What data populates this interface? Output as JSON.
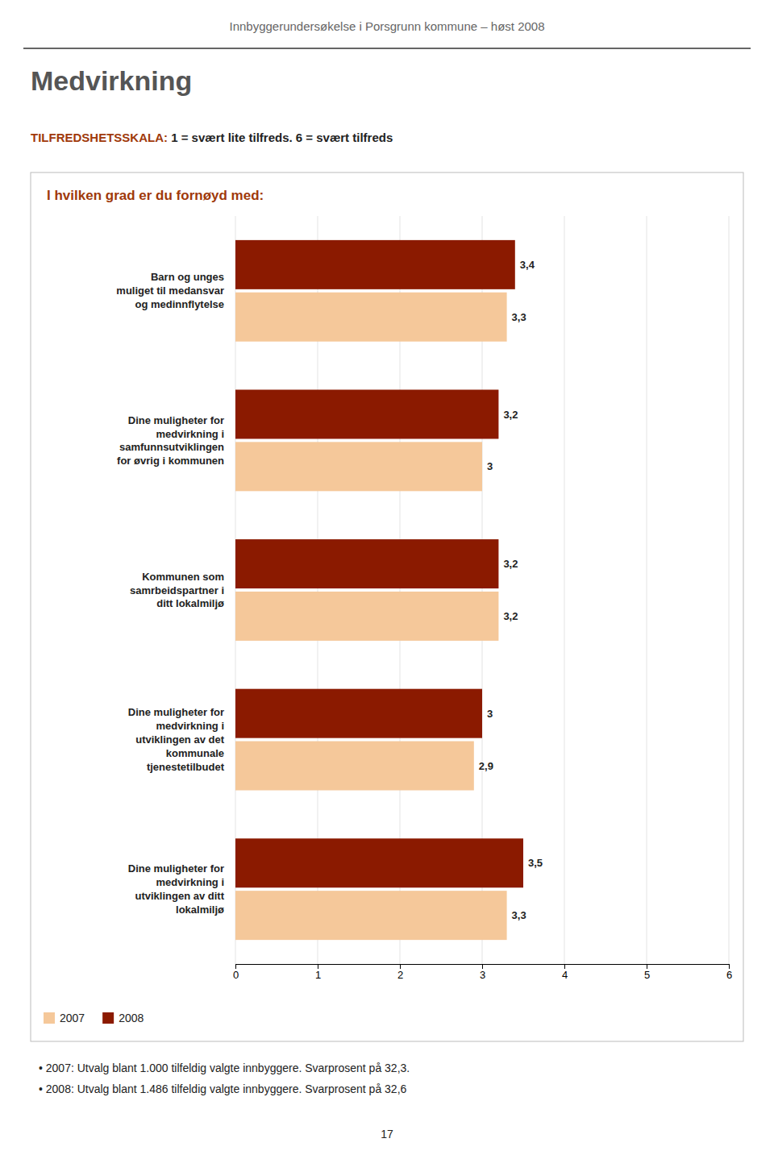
{
  "chart_data": {
    "type": "bar",
    "orientation": "horizontal",
    "title": "Medvirkning",
    "subtitle": "I hvilken grad er du fornøyd med:",
    "annotations": [
      "Innbyggerundersøkelse i Porsgrunn kommune – høst 2008",
      "TILFREDSHETSSKALA:",
      " 1 = svært lite tilfreds. 6 = svært tilfreds",
      "• 2007: Utvalg blant 1.000 tilfeldig valgte innbyggere. Svarprosent på 32,3.",
      "• 2008: Utvalg blant 1.486 tilfeldig valgte innbyggere. Svarprosent på 32,6",
      "17"
    ],
    "categories": [
      "Barn og unges\nmuliget til medansvar\nog medinnflytelse",
      "Dine muligheter for\nmedvirkning i\nsamfunnsutviklingen\nfor øvrig i kommunen",
      "Kommunen som\nsamrbeidspartner i\nditt lokalmiljø",
      "Dine muligheter for\nmedvirkning i\nutviklingen av det\nkommunale\ntjenestetilbudet",
      "Dine muligheter for\nmedvirkning i\nutviklingen av ditt\nlokalmiljø"
    ],
    "series": [
      {
        "name": "2007",
        "color": "#F5C89A",
        "values": [
          3.3,
          3.0,
          3.2,
          2.9,
          3.3
        ],
        "value_labels": [
          "3,3",
          "3",
          "3,2",
          "2,9",
          "3,3"
        ]
      },
      {
        "name": "2008",
        "color": "#8B1A00",
        "values": [
          3.4,
          3.2,
          3.2,
          3.0,
          3.5
        ],
        "value_labels": [
          "3,4",
          "3,2",
          "3,2",
          "3",
          "3,5"
        ]
      }
    ],
    "xlim": [
      0,
      6
    ],
    "xticks": [
      0,
      1,
      2,
      3,
      4,
      5,
      6
    ],
    "grid": true,
    "data_labels": true,
    "legend": "bottom-left"
  }
}
